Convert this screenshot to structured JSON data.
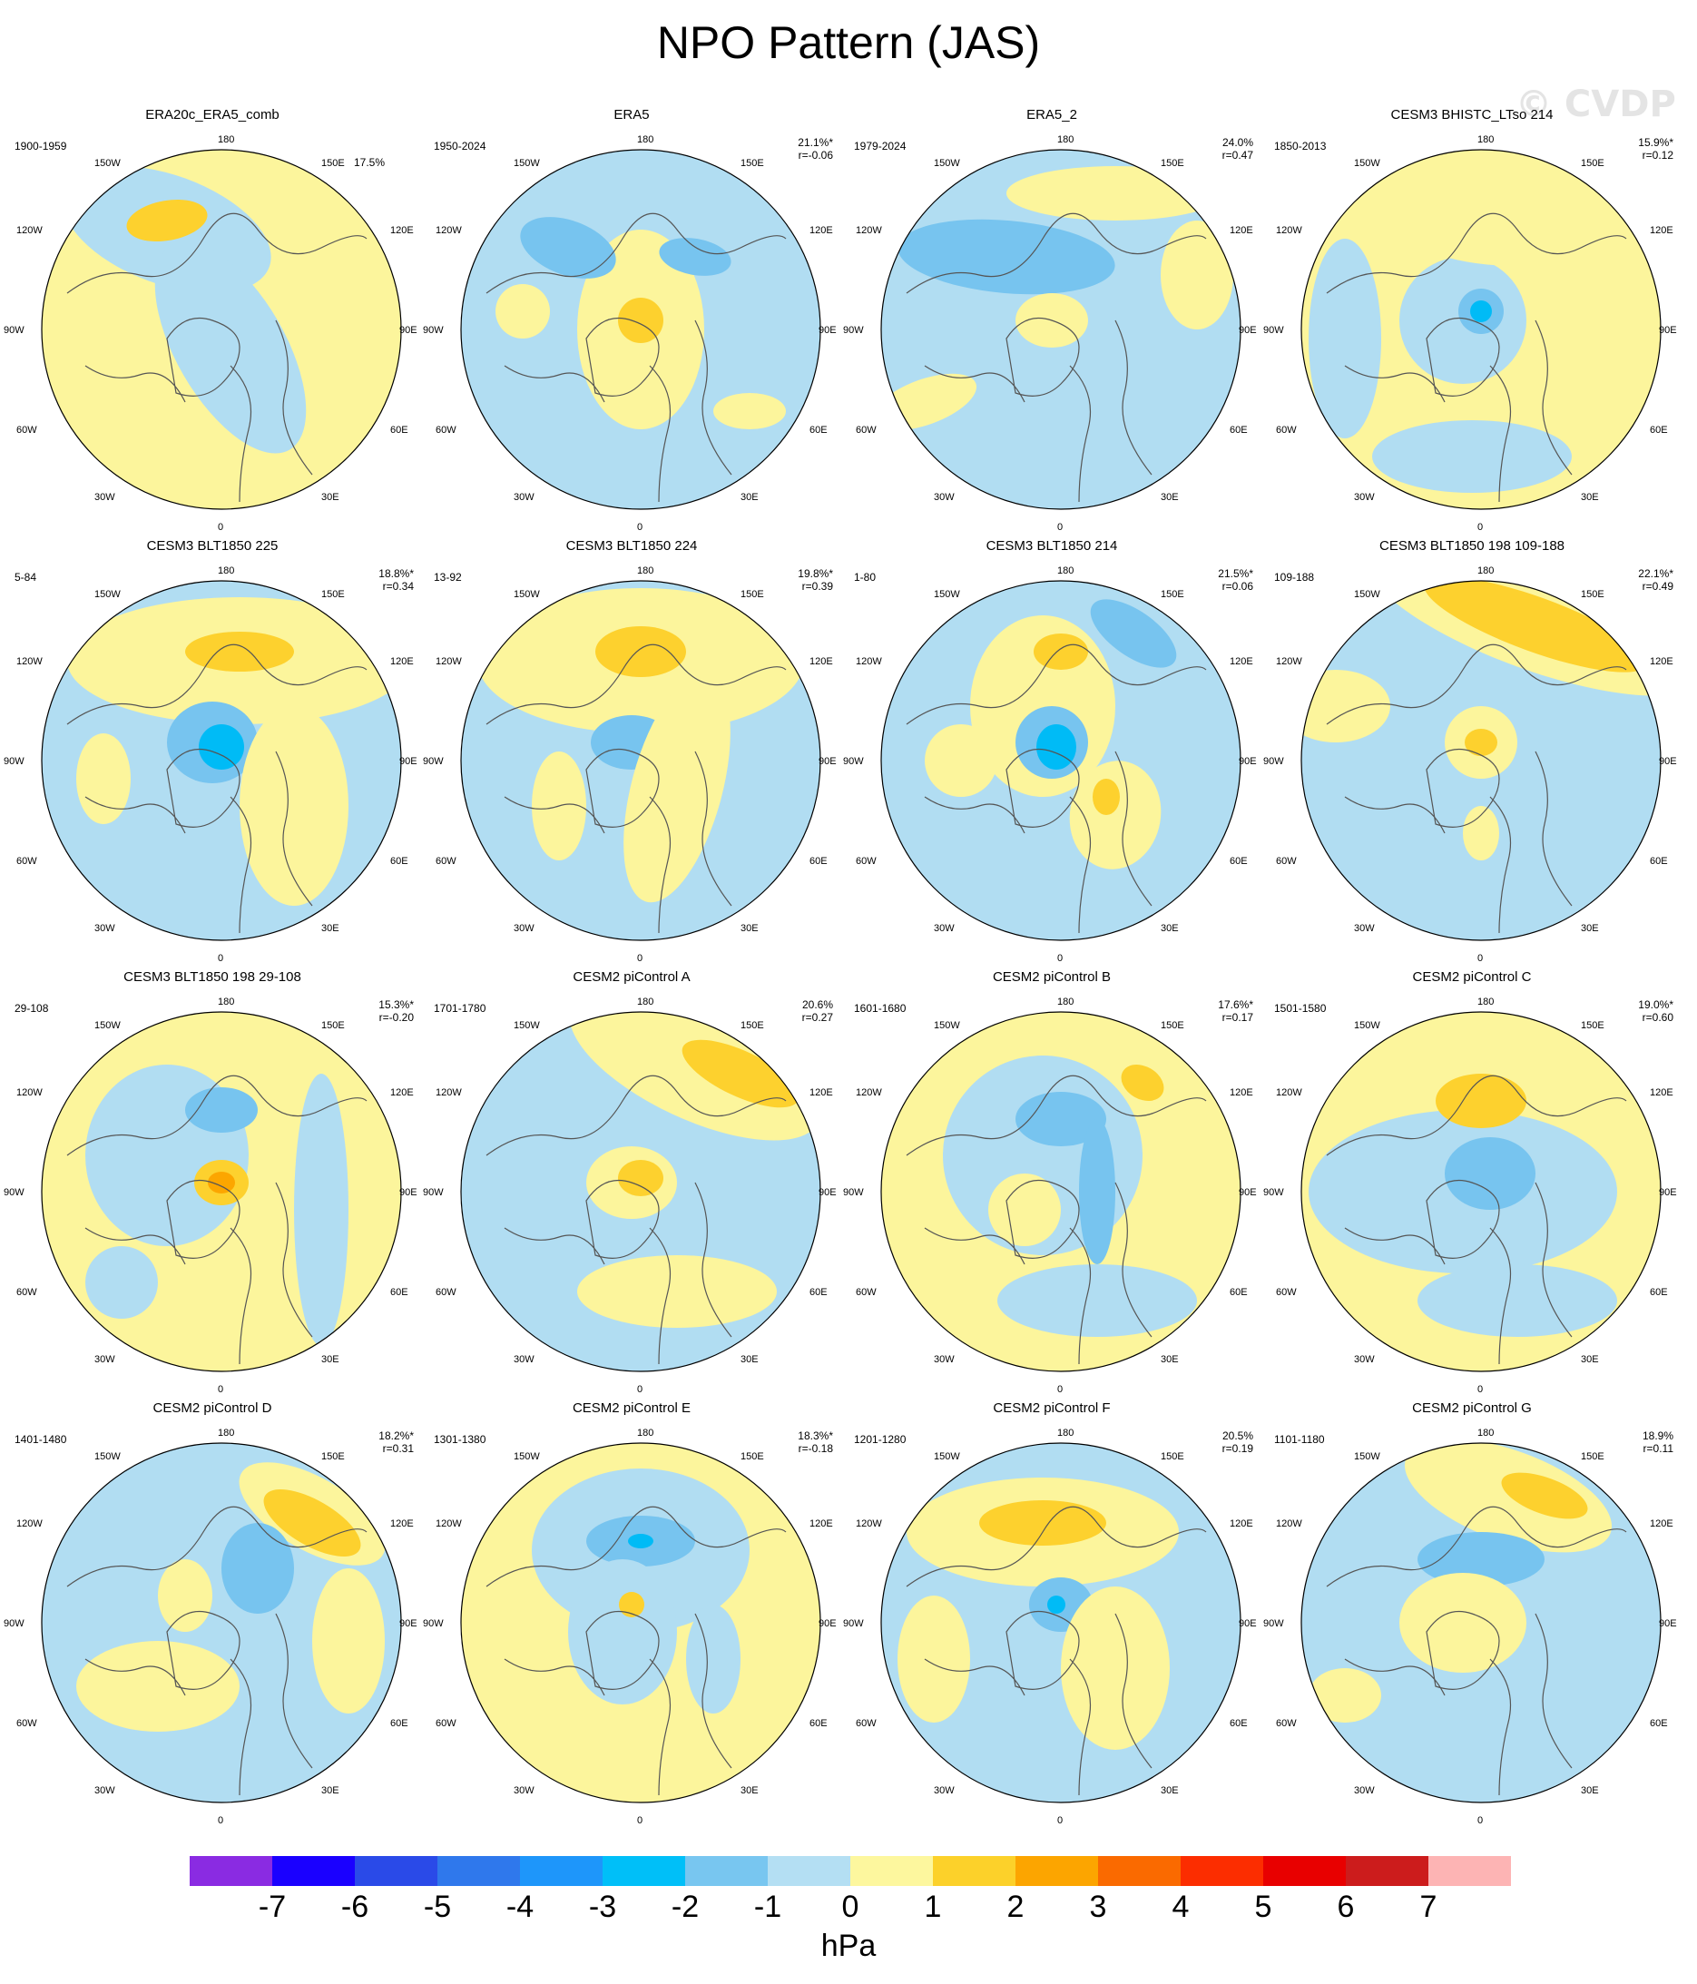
{
  "title": "NPO Pattern (JAS)",
  "watermark": "© CVDP",
  "units": "hPa",
  "colors": {
    "pos1": "#fcf59c",
    "pos2": "#fdd12e",
    "pos3": "#fca600",
    "neg1": "#b1ddf2",
    "neg2": "#77c4ef",
    "neg3": "#00bbf6",
    "coast": "#555555"
  },
  "lon_labels": {
    "top": "180",
    "bottom": "0",
    "w150": "150W",
    "e150": "150E",
    "w120": "120W",
    "e120": "120E",
    "w90": "90W",
    "e90": "90E",
    "w60": "60W",
    "e60": "60E",
    "w30": "30W",
    "e30": "30E"
  },
  "panels": [
    {
      "title": "ERA20c_ERA5_comb",
      "period": "1900-1959",
      "pct": "17.5%",
      "r": ""
    },
    {
      "title": "ERA5",
      "period": "1950-2024",
      "pct": "21.1%*",
      "r": "r=-0.06"
    },
    {
      "title": "ERA5_2",
      "period": "1979-2024",
      "pct": "24.0%",
      "r": "r=0.47"
    },
    {
      "title": "CESM3 BHISTC_LTso 214",
      "period": "1850-2013",
      "pct": "15.9%*",
      "r": "r=0.12"
    },
    {
      "title": "CESM3 BLT1850 225",
      "period": "5-84",
      "pct": "18.8%*",
      "r": "r=0.34"
    },
    {
      "title": "CESM3 BLT1850 224",
      "period": "13-92",
      "pct": "19.8%*",
      "r": "r=0.39"
    },
    {
      "title": "CESM3 BLT1850 214",
      "period": "1-80",
      "pct": "21.5%*",
      "r": "r=0.06"
    },
    {
      "title": "CESM3 BLT1850 198 109-188",
      "period": "109-188",
      "pct": "22.1%*",
      "r": "r=0.49"
    },
    {
      "title": "CESM3 BLT1850 198 29-108",
      "period": "29-108",
      "pct": "15.3%*",
      "r": "r=-0.20"
    },
    {
      "title": "CESM2 piControl A",
      "period": "1701-1780",
      "pct": "20.6%",
      "r": "r=0.27"
    },
    {
      "title": "CESM2 piControl B",
      "period": "1601-1680",
      "pct": "17.6%*",
      "r": "r=0.17"
    },
    {
      "title": "CESM2 piControl C",
      "period": "1501-1580",
      "pct": "19.0%*",
      "r": "r=0.60"
    },
    {
      "title": "CESM2 piControl D",
      "period": "1401-1480",
      "pct": "18.2%*",
      "r": "r=0.31"
    },
    {
      "title": "CESM2 piControl E",
      "period": "1301-1380",
      "pct": "18.3%*",
      "r": "r=-0.18"
    },
    {
      "title": "CESM2 piControl F",
      "period": "1201-1280",
      "pct": "20.5%",
      "r": "r=0.19"
    },
    {
      "title": "CESM2 piControl G",
      "period": "1101-1180",
      "pct": "18.9%",
      "r": "r=0.11"
    }
  ],
  "colorbar": {
    "colors": [
      "#8a2be2",
      "#1a00ff",
      "#2a4ae8",
      "#2f78ec",
      "#1e96fa",
      "#00bff8",
      "#78c6f0",
      "#b4dff3",
      "#fdf79e",
      "#fcd12a",
      "#fca500",
      "#fa6a00",
      "#fc2d00",
      "#e80000",
      "#cc1c1c",
      "#fdb4b4"
    ],
    "labels": [
      "-7",
      "-6",
      "-5",
      "-4",
      "-3",
      "-2",
      "-1",
      "0",
      "1",
      "2",
      "3",
      "4",
      "5",
      "6",
      "7"
    ]
  }
}
